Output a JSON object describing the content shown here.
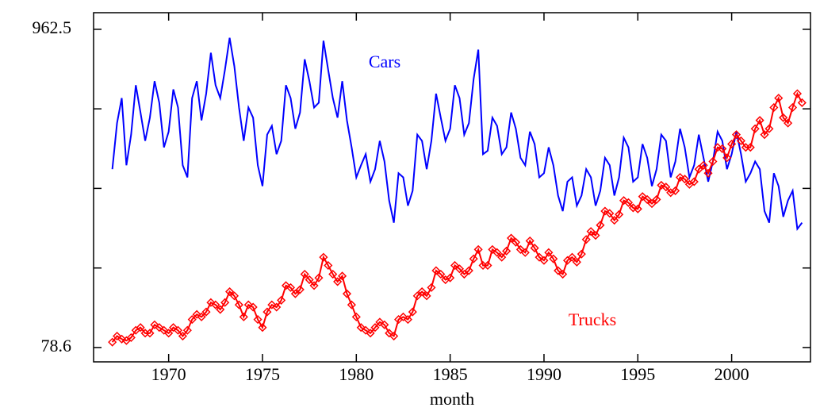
{
  "chart_data": {
    "type": "line",
    "xlabel": "month",
    "yscale": "log",
    "xlim": [
      1966,
      2004.2
    ],
    "xticks": [
      1970,
      1975,
      1980,
      1985,
      1990,
      1995,
      2000
    ],
    "ylim": [
      70.2,
      1097
    ],
    "yticks": [
      78.6,
      962.5
    ],
    "yticks_unlabeled": [
      147.0,
      275.1,
      514.6
    ],
    "x": [
      1967,
      1967.25,
      1967.5,
      1967.75,
      1968,
      1968.25,
      1968.5,
      1968.75,
      1969,
      1969.25,
      1969.5,
      1969.75,
      1970,
      1970.25,
      1970.5,
      1970.75,
      1971,
      1971.25,
      1971.5,
      1971.75,
      1972,
      1972.25,
      1972.5,
      1972.75,
      1973,
      1973.25,
      1973.5,
      1973.75,
      1974,
      1974.25,
      1974.5,
      1974.75,
      1975,
      1975.25,
      1975.5,
      1975.75,
      1976,
      1976.25,
      1976.5,
      1976.75,
      1977,
      1977.25,
      1977.5,
      1977.75,
      1978,
      1978.25,
      1978.5,
      1978.75,
      1979,
      1979.25,
      1979.5,
      1979.75,
      1980,
      1980.25,
      1980.5,
      1980.75,
      1981,
      1981.25,
      1981.5,
      1981.75,
      1982,
      1982.25,
      1982.5,
      1982.75,
      1983,
      1983.25,
      1983.5,
      1983.75,
      1984,
      1984.25,
      1984.5,
      1984.75,
      1985,
      1985.25,
      1985.5,
      1985.75,
      1986,
      1986.25,
      1986.5,
      1986.75,
      1987,
      1987.25,
      1987.5,
      1987.75,
      1988,
      1988.25,
      1988.5,
      1988.75,
      1989,
      1989.25,
      1989.5,
      1989.75,
      1990,
      1990.25,
      1990.5,
      1990.75,
      1991,
      1991.25,
      1991.5,
      1991.75,
      1992,
      1992.25,
      1992.5,
      1992.75,
      1993,
      1993.25,
      1993.5,
      1993.75,
      1994,
      1994.25,
      1994.5,
      1994.75,
      1995,
      1995.25,
      1995.5,
      1995.75,
      1996,
      1996.25,
      1996.5,
      1996.75,
      1997,
      1997.25,
      1997.5,
      1997.75,
      1998,
      1998.25,
      1998.5,
      1998.75,
      1999,
      1999.25,
      1999.5,
      1999.75,
      2000,
      2000.25,
      2000.5,
      2000.75,
      2001,
      2001.25,
      2001.5,
      2001.75,
      2002,
      2002.25,
      2002.5,
      2002.75,
      2003,
      2003.25,
      2003.5,
      2003.75
    ],
    "series": [
      {
        "name": "Cars",
        "color": "#0000ff",
        "marker": "none",
        "values": [
          320,
          460,
          560,
          330,
          420,
          620,
          500,
          400,
          480,
          640,
          540,
          380,
          430,
          600,
          520,
          330,
          300,
          560,
          640,
          470,
          580,
          800,
          620,
          560,
          700,
          900,
          720,
          520,
          400,
          520,
          480,
          330,
          280,
          420,
          450,
          360,
          400,
          620,
          560,
          440,
          500,
          760,
          640,
          520,
          540,
          880,
          700,
          560,
          480,
          640,
          470,
          380,
          300,
          330,
          360,
          290,
          320,
          400,
          340,
          250,
          210,
          310,
          300,
          240,
          270,
          420,
          400,
          320,
          400,
          580,
          480,
          400,
          440,
          620,
          560,
          420,
          460,
          650,
          820,
          360,
          370,
          480,
          450,
          360,
          380,
          500,
          440,
          350,
          330,
          430,
          390,
          300,
          310,
          380,
          330,
          260,
          230,
          290,
          300,
          240,
          260,
          320,
          300,
          240,
          270,
          350,
          330,
          260,
          300,
          410,
          380,
          290,
          300,
          390,
          350,
          280,
          320,
          420,
          400,
          300,
          340,
          440,
          380,
          300,
          330,
          420,
          350,
          290,
          340,
          430,
          400,
          320,
          360,
          430,
          360,
          290,
          310,
          340,
          320,
          230,
          210,
          310,
          280,
          220,
          250,
          270,
          200,
          210
        ]
      },
      {
        "name": "Trucks",
        "color": "#ff0000",
        "marker": "diamond",
        "values": [
          82,
          86,
          84,
          83,
          85,
          90,
          92,
          88,
          88,
          94,
          92,
          90,
          88,
          92,
          90,
          86,
          90,
          98,
          102,
          100,
          104,
          112,
          110,
          106,
          112,
          122,
          118,
          110,
          100,
          110,
          108,
          98,
          92,
          104,
          110,
          108,
          114,
          128,
          126,
          120,
          124,
          140,
          134,
          128,
          136,
          160,
          150,
          140,
          132,
          138,
          120,
          110,
          100,
          92,
          90,
          88,
          92,
          96,
          94,
          88,
          86,
          98,
          100,
          98,
          104,
          118,
          122,
          118,
          126,
          144,
          140,
          134,
          136,
          150,
          146,
          140,
          144,
          158,
          170,
          150,
          150,
          170,
          166,
          160,
          168,
          186,
          180,
          170,
          166,
          182,
          172,
          160,
          156,
          166,
          158,
          144,
          140,
          156,
          160,
          154,
          164,
          184,
          196,
          190,
          206,
          230,
          226,
          214,
          224,
          250,
          246,
          236,
          234,
          258,
          252,
          244,
          252,
          282,
          278,
          266,
          270,
          300,
          296,
          284,
          290,
          320,
          330,
          310,
          340,
          380,
          376,
          350,
          390,
          420,
          400,
          380,
          380,
          440,
          470,
          420,
          440,
          520,
          560,
          480,
          460,
          520,
          580,
          540
        ]
      }
    ]
  }
}
